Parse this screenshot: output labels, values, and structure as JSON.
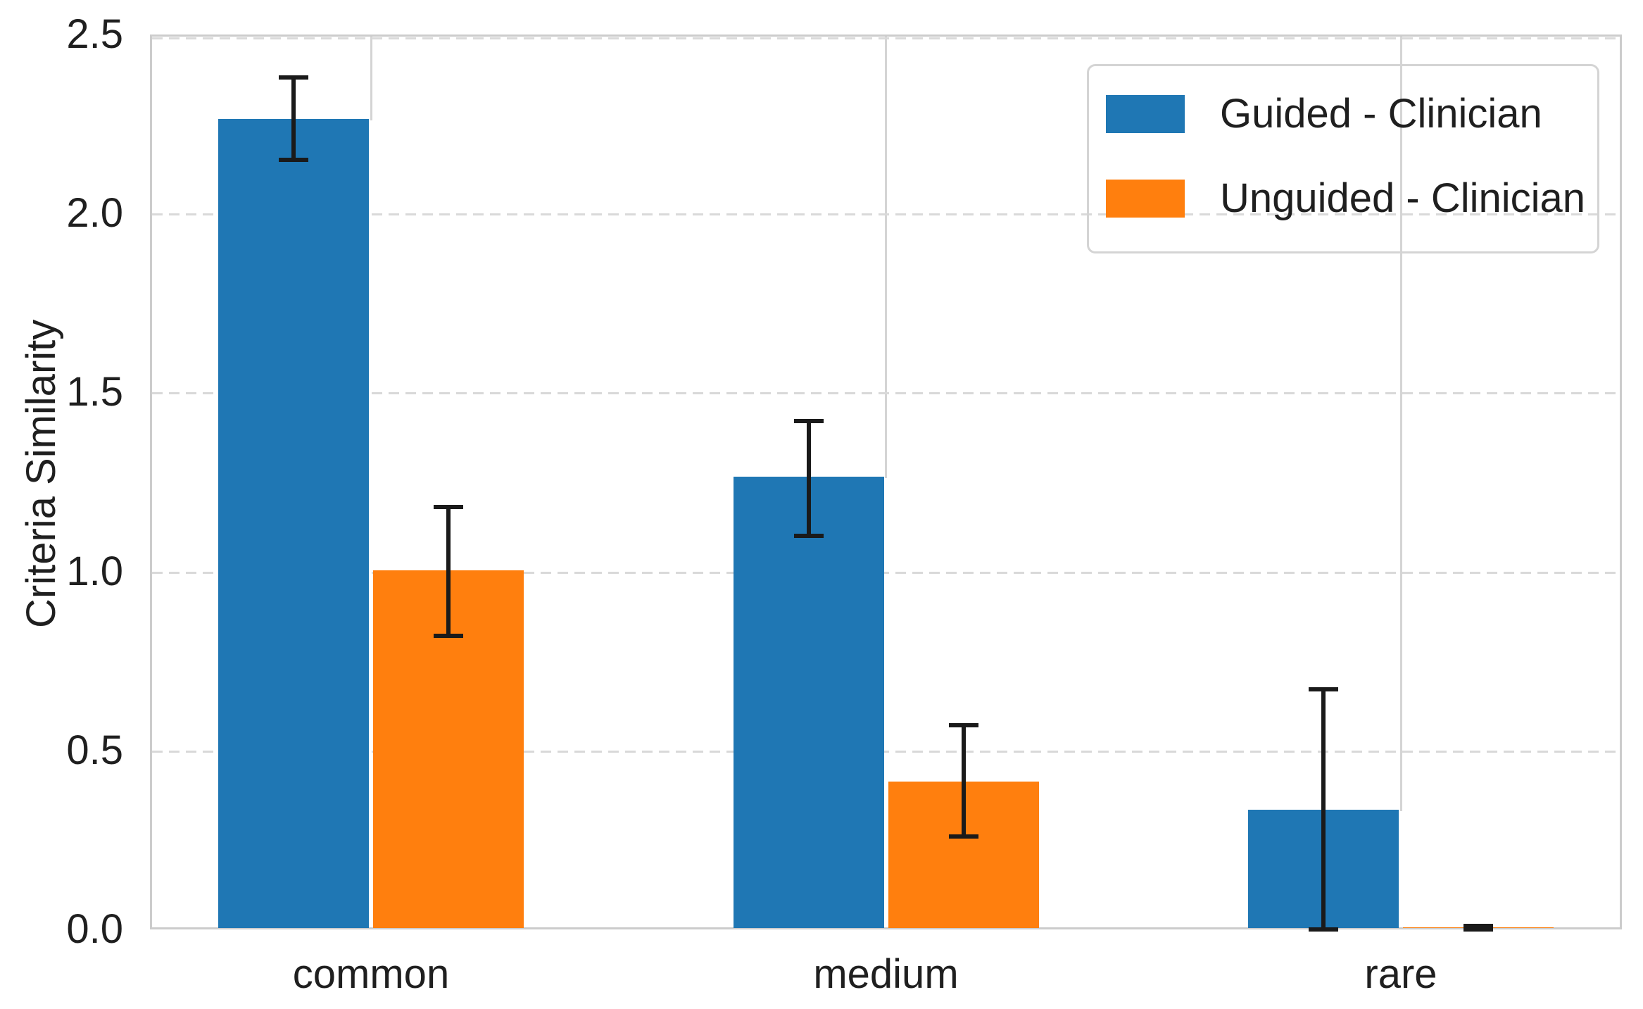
{
  "chart_data": {
    "type": "bar",
    "title": "",
    "categories": [
      "common",
      "medium",
      "rare"
    ],
    "series": [
      {
        "name": "Guided - Clinician",
        "color": "#1f77b4",
        "values": [
          2.26,
          1.26,
          0.33
        ],
        "error_low": [
          2.15,
          1.1,
          0.0
        ],
        "error_high": [
          2.38,
          1.42,
          0.67
        ]
      },
      {
        "name": "Unguided - Clinician",
        "color": "#ff7f0e",
        "values": [
          1.0,
          0.41,
          0.002
        ],
        "error_low": [
          0.82,
          0.26,
          0.0
        ],
        "error_high": [
          1.18,
          0.57,
          0.01
        ]
      }
    ],
    "xlabel": "",
    "ylabel": "Criteria Similarity",
    "ylim": [
      0,
      2.5
    ],
    "yticks": [
      "0.0",
      "0.5",
      "1.0",
      "1.5",
      "2.0",
      "2.5"
    ],
    "ytick_values": [
      0,
      0.5,
      1.0,
      1.5,
      2.0,
      2.5
    ],
    "grid": {
      "horizontal": "dashed",
      "vertical": "solid",
      "color": "#d9d9d9"
    },
    "legend_position": "upper right",
    "error_bar_color": "#1a1a1a",
    "axis_frame_color": "#cccccc"
  }
}
